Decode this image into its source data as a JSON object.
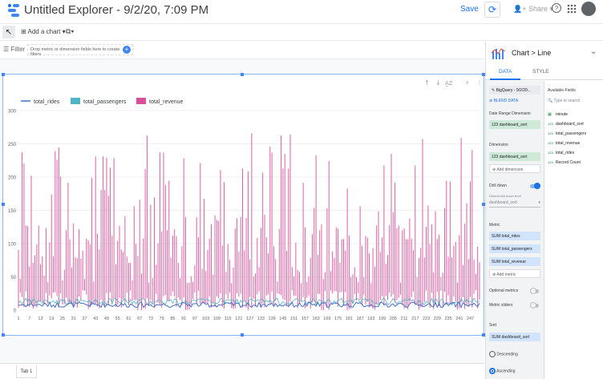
{
  "header": {
    "title": "Untitled Explorer - 9/2/20, 7:09 PM",
    "save": "Save",
    "share": "Share",
    "help": "?"
  },
  "toolbar": {
    "add_chart": "Add a chart",
    "controls": "▾"
  },
  "filter": {
    "label": "Filter",
    "drop_text": "Drop metric or dimension fields here to create filters"
  },
  "tabs": {
    "tab1": "Tab 1"
  },
  "panel": {
    "title": "Chart > Line",
    "tab_data": "DATA",
    "tab_style": "STYLE",
    "source": "BigQuery - 9/2/20...",
    "blend": "BLEND DATA",
    "date_range_label": "Date Range Dimension",
    "date_range_value": "dashboard_sort",
    "dimension_label": "Dimension",
    "dimension_value": "dashboard_sort",
    "add_dimension": "Add dimension",
    "drill_down": "Drill down",
    "default_drill": "Default drill down level",
    "default_drill_value": "dashboard_sort",
    "metric_label": "Metric",
    "metrics": [
      "total_rides",
      "total_passengers",
      "total_revenue"
    ],
    "add_metric": "Add metric",
    "optional_metrics": "Optional metrics",
    "metric_sliders": "Metric sliders",
    "sort_label": "Sort",
    "sort_value": "dashboard_sort",
    "descending": "Descending",
    "ascending": "Ascending",
    "available_fields": "Available Fields",
    "search_placeholder": "Type to search",
    "fields": [
      {
        "type": "🗓",
        "name": "minute"
      },
      {
        "type": "123",
        "name": "dashboard_sort"
      },
      {
        "type": "123",
        "name": "total_passengers"
      },
      {
        "type": "123",
        "name": "total_revenue"
      },
      {
        "type": "123",
        "name": "total_rides"
      },
      {
        "type": "123",
        "name": "Record Count"
      }
    ],
    "sum": "SUM",
    "num": "123"
  },
  "chart_data": {
    "type": "line",
    "legend": [
      "total_rides",
      "total_passengers",
      "total_revenue"
    ],
    "colors": {
      "total_rides": "#4471c4",
      "total_passengers": "#4fb5c6",
      "total_revenue": "#d94f9a"
    },
    "ylim": [
      0,
      300
    ],
    "yticks": [
      0,
      50,
      100,
      150,
      200,
      250,
      300
    ],
    "xticks": [
      "1",
      "7",
      "13",
      "19",
      "25",
      "31",
      "37",
      "43",
      "49",
      "55",
      "61",
      "67",
      "73",
      "79",
      "85",
      "91",
      "97",
      "103",
      "109",
      "115",
      "121",
      "127",
      "133",
      "139",
      "145",
      "151",
      "157",
      "163",
      "169",
      "175",
      "181",
      "187",
      "193",
      "199",
      "205",
      "211",
      "217",
      "223",
      "229",
      "235",
      "241",
      "247"
    ],
    "n_points": 252
  }
}
